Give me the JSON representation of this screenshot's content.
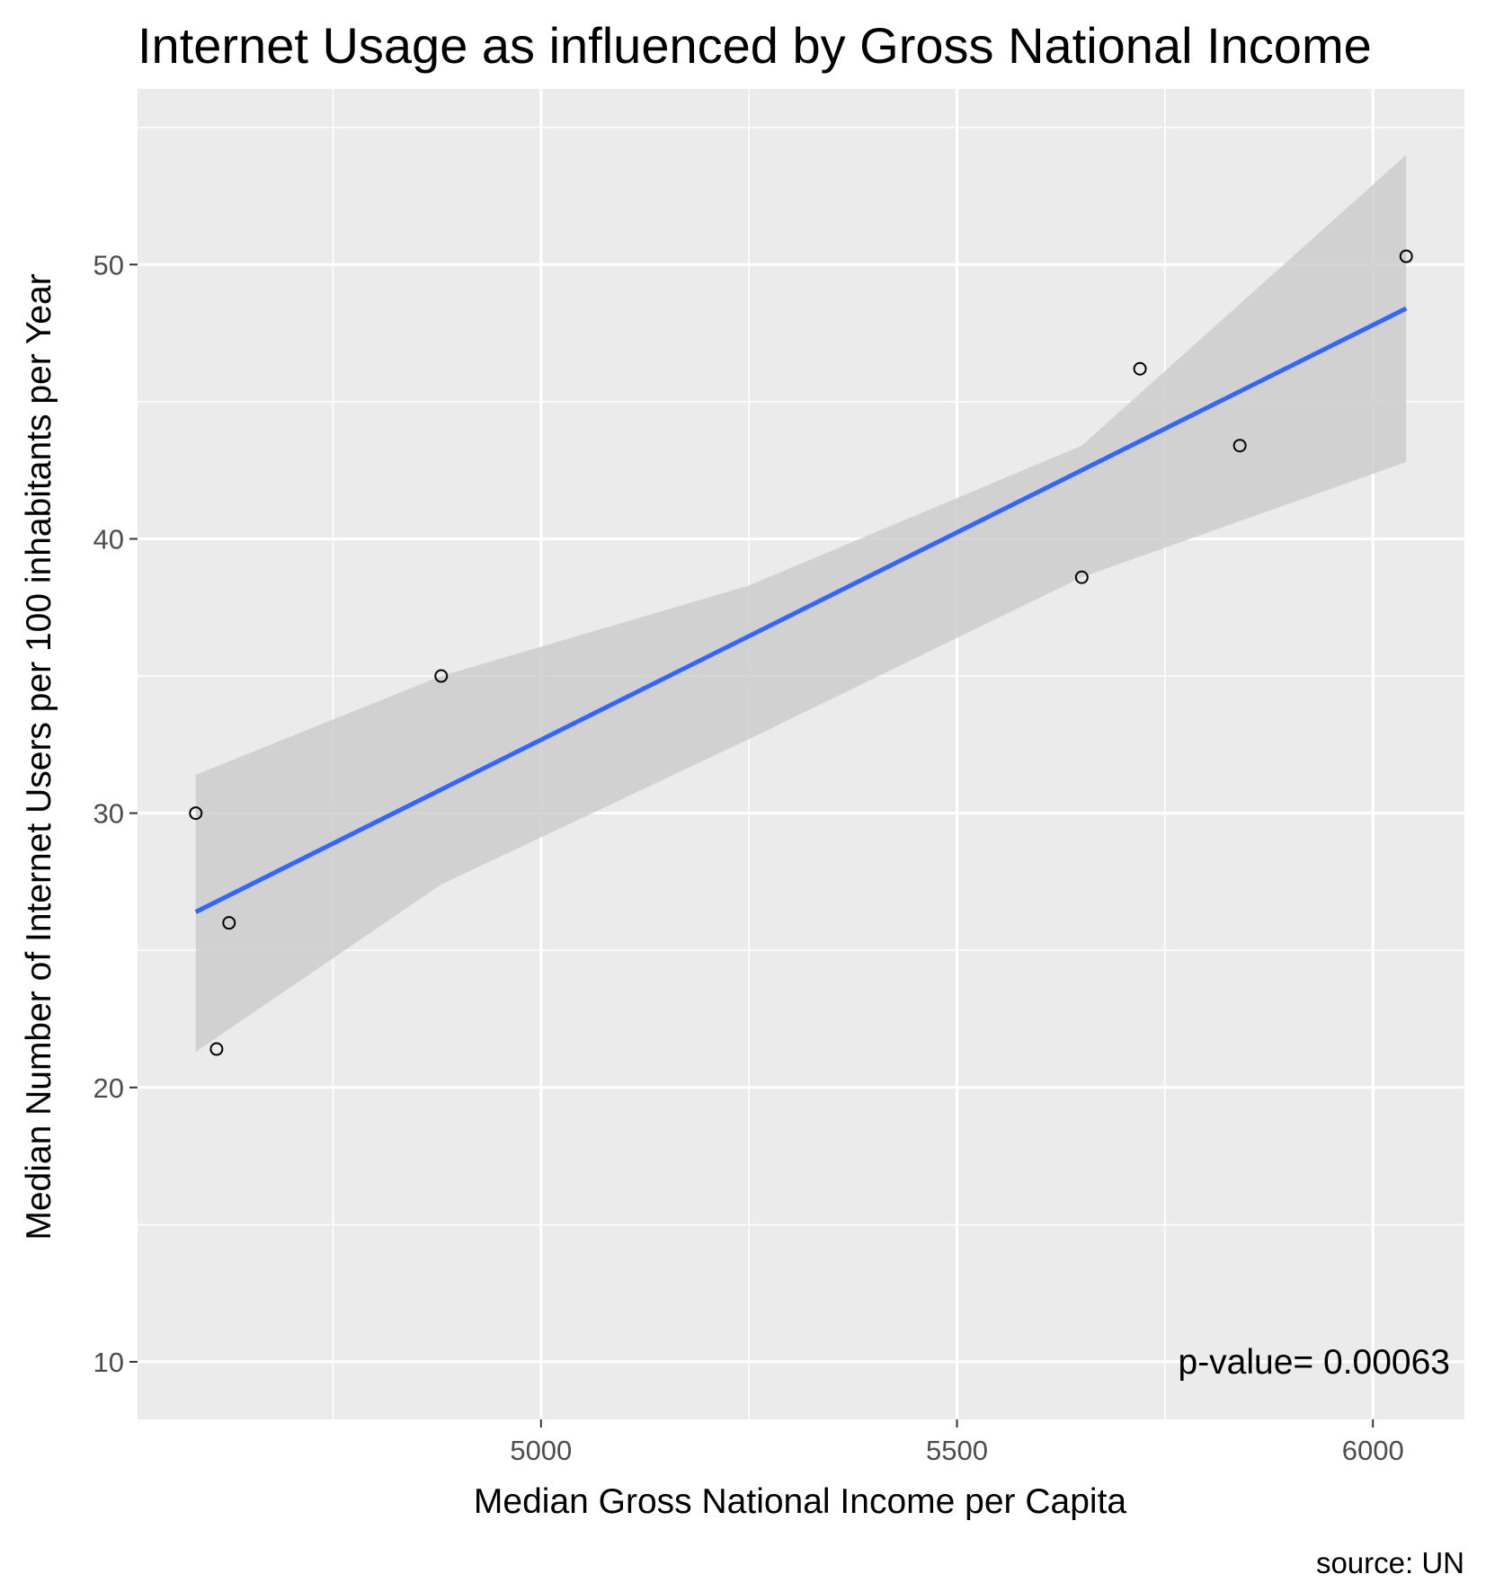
{
  "chart_data": {
    "type": "scatter",
    "title": "Internet Usage as influenced by Gross National Income",
    "xlabel": "Median Gross National Income per Capita",
    "ylabel": "Median Number of Internet Users per 100 inhabitants per Year",
    "caption": "source: UN",
    "annotation": "p-value= 0.00063",
    "xlim": [
      4515,
      6110
    ],
    "ylim": [
      7.9,
      56.4
    ],
    "x_ticks": [
      5000,
      5500,
      6000
    ],
    "x_tick_labels": [
      "5000",
      "5500",
      "6000"
    ],
    "x_minor_ticks": [
      4750,
      5250,
      5750
    ],
    "y_ticks": [
      10,
      20,
      30,
      40,
      50
    ],
    "y_tick_labels": [
      "10",
      "20",
      "30",
      "40",
      "50"
    ],
    "y_minor_ticks": [
      15,
      25,
      35,
      45,
      55
    ],
    "grid": true,
    "points": [
      {
        "x": 4585,
        "y": 30.0
      },
      {
        "x": 4610,
        "y": 21.4
      },
      {
        "x": 4625,
        "y": 26.0
      },
      {
        "x": 4880,
        "y": 35.0
      },
      {
        "x": 5650,
        "y": 38.6
      },
      {
        "x": 5720,
        "y": 46.2
      },
      {
        "x": 5840,
        "y": 43.4
      },
      {
        "x": 6040,
        "y": 50.3
      }
    ],
    "trend_line": {
      "method": "linear",
      "x": [
        4585,
        6040
      ],
      "y": [
        26.4,
        48.4
      ]
    },
    "confidence_band": {
      "x": [
        4585,
        4880,
        5250,
        5650,
        6040
      ],
      "lower": [
        21.3,
        27.4,
        32.7,
        38.6,
        42.8
      ],
      "upper": [
        31.4,
        35.0,
        38.3,
        43.4,
        54.0
      ]
    },
    "colors": {
      "panel_background": "#ebebeb",
      "grid": "#ffffff",
      "trend_line": "#3366ff",
      "band": "#cccccc",
      "point_stroke": "#000000"
    }
  }
}
